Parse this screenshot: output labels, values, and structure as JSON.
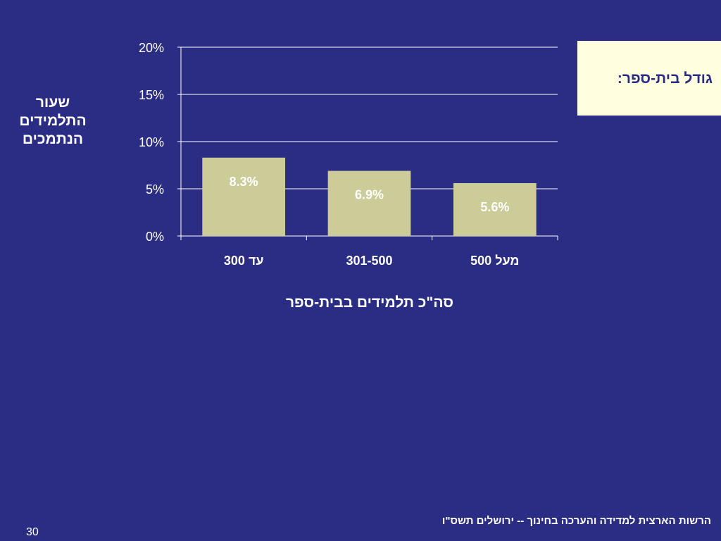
{
  "chart_data": {
    "type": "bar",
    "ylabel": "שעור התלמידים הנתמכים",
    "ylabel_lines": [
      "שעור",
      "התלמידים",
      "הנתמכים"
    ],
    "xlabel": "סה\"כ תלמידים בבית-ספר",
    "categories": [
      "עד 300",
      "301-500",
      "מעל 500"
    ],
    "values": [
      8.3,
      6.9,
      5.6
    ],
    "data_labels": [
      "8.3%",
      "6.9%",
      "5.6%"
    ],
    "ylim": [
      0,
      20
    ],
    "yticks": [
      0,
      5,
      10,
      15,
      20
    ],
    "ytick_labels": [
      "0%",
      "5%",
      "10%",
      "15%",
      "20%"
    ],
    "grid": true,
    "bar_color": "#cccc99"
  },
  "legend": {
    "title": "גודל בית-ספר:"
  },
  "footer": {
    "text": "הרשות הארצית למדידה והערכה בחינוך  -- ירושלים תשס\"ו"
  },
  "slide_number": "30",
  "colors": {
    "background": "#2b2d84",
    "bar": "#cccc99",
    "legend_bg": "#ffffe0",
    "grid": "#ffffff"
  }
}
